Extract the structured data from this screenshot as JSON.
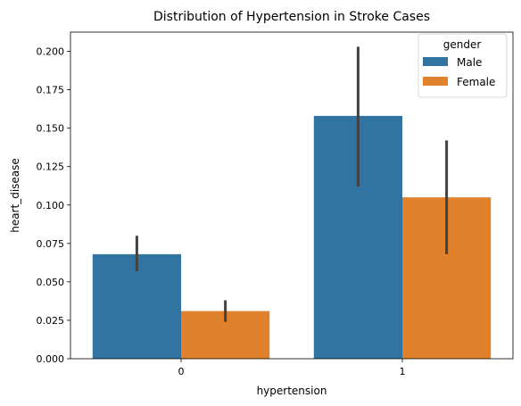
{
  "chart_data": {
    "type": "bar",
    "title": "Distribution of Hypertension in Stroke Cases",
    "xlabel": "hypertension",
    "ylabel": "heart_disease",
    "categories": [
      "0",
      "1"
    ],
    "ylim": [
      0,
      0.2125
    ],
    "yticks": [
      "0.000",
      "0.025",
      "0.050",
      "0.075",
      "0.100",
      "0.125",
      "0.150",
      "0.175",
      "0.200"
    ],
    "grid": false,
    "legend": {
      "title": "gender",
      "placement": "top-right"
    },
    "series": [
      {
        "name": "Male",
        "color": "#3274a1",
        "values": [
          0.068,
          0.158
        ],
        "ci_low": [
          0.057,
          0.112
        ],
        "ci_high": [
          0.08,
          0.203
        ]
      },
      {
        "name": "Female",
        "color": "#e1812c",
        "values": [
          0.031,
          0.105
        ],
        "ci_low": [
          0.024,
          0.068
        ],
        "ci_high": [
          0.038,
          0.142
        ]
      }
    ]
  }
}
